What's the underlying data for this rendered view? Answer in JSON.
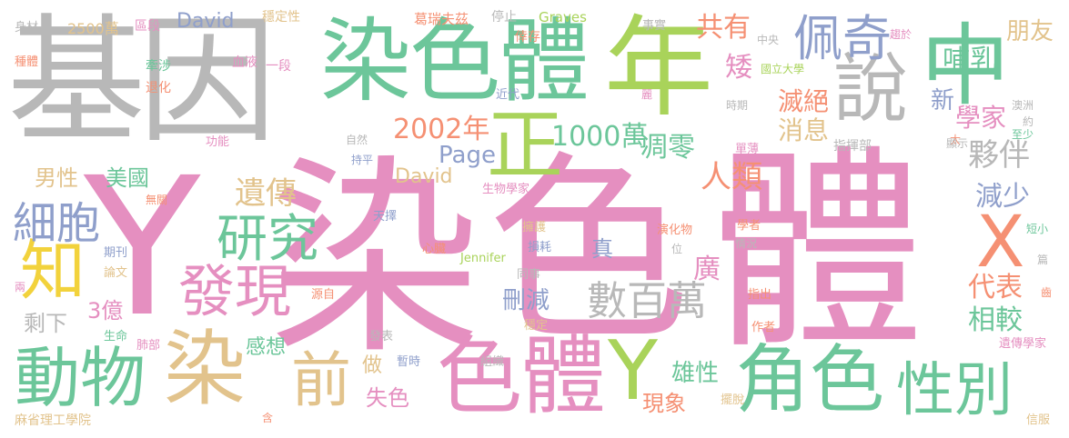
{
  "words": {
    "ranse_big": "染",
    "se_big": "色",
    "ti_big": "體",
    "y_big": "Y",
    "jiyin": "基因",
    "ransetti_top": "染色體",
    "nian": "年",
    "zhong": "中",
    "shuo": "說",
    "zheng": "正",
    "peiqi": "佩奇",
    "sesti_low": "色體",
    "y_low": "Y",
    "jiaose": "角色",
    "xingbie": "性別",
    "x": "X",
    "dongwu": "動物",
    "ran_low": "染",
    "qian": "前",
    "zhi": "知",
    "fa": "發",
    "xian": "現",
    "yanjiu": "研究",
    "xibao": "細胞",
    "yichuan": "遺傳",
    "shubaiwan": "數百萬",
    "year2002": "2002年",
    "wan1000": "1000萬",
    "page": "Page",
    "diaoling": "凋零",
    "huoban": "夥伴",
    "jianshao": "減少",
    "renlei": "人類",
    "miejue": "滅絕",
    "xiaoxi": "消息",
    "buru": "哺乳",
    "xuejia": "學家",
    "pengyou": "朋友",
    "xin": "新",
    "gongyou": "共有",
    "ai": "矮",
    "guang": "廣",
    "daibiao": "代表",
    "xiangjiao": "相較",
    "xiongxing": "雄性",
    "xianxiang": "現象",
    "shise": "失色",
    "shanjian": "刪減",
    "zhen": "真",
    "yi3": "3億",
    "shengxia": "剩下",
    "ganxiang": "感想",
    "zuo": "做",
    "meiguo": "美國",
    "nanxing": "男性",
    "david1": "David",
    "david2": "David",
    "wan2500": "2500萬",
    "shencai": "身材",
    "zhongti": "種體",
    "qvduan": "區段",
    "qianshe": "牽涉",
    "tuihua": "退化",
    "xueye": "血液",
    "yiduan": "一段",
    "wendingxing": "穩定性",
    "geruifuzi": "葛瑞夫茲",
    "tingzhi": "停止",
    "graves": "Graves",
    "xingcun": "倖存",
    "shishi": "事實",
    "zhongyang": "中央",
    "chaoyu": "趨於",
    "guoli": "國立大學",
    "aozhou": "澳洲",
    "yue": "約",
    "shiqi": "時期",
    "xian_counter": "麗",
    "jindai": "近代",
    "ziran": "自然",
    "gongneng": "功能",
    "chiping": "持平",
    "zhihuibu": "指揮部",
    "tai": "太",
    "xianshi": "顯示",
    "zhishao": "至少",
    "danbo": "單薄",
    "tianze": "天擇",
    "wuguan": "無關",
    "shengwuxuejia": "生物學家",
    "yonghu": "擁護",
    "yanhuawu": "演化物",
    "xuezhe": "學者",
    "duanxiao": "短小",
    "qingkuang": "情況",
    "qikan": "期刊",
    "xinzang": "心臟",
    "sunhao": "損耗",
    "wei": "位",
    "lunwen": "論文",
    "jennifer": "Jennifer",
    "pian": "篇",
    "liang": "兩",
    "yuanzi": "源自",
    "tongshi": "同事",
    "zhichu": "指出",
    "chi": "齒",
    "shengming": "生命",
    "feibu": "肺部",
    "wending": "穩定",
    "zuozhe": "作者",
    "fabiao": "發表",
    "zanshi": "暫時",
    "zuzhi": "組織",
    "baituo": "擺脫",
    "yichuanxuejia": "遺傳學家",
    "mit": "麻省理工學院",
    "han": "含",
    "xinfu": "信服"
  }
}
